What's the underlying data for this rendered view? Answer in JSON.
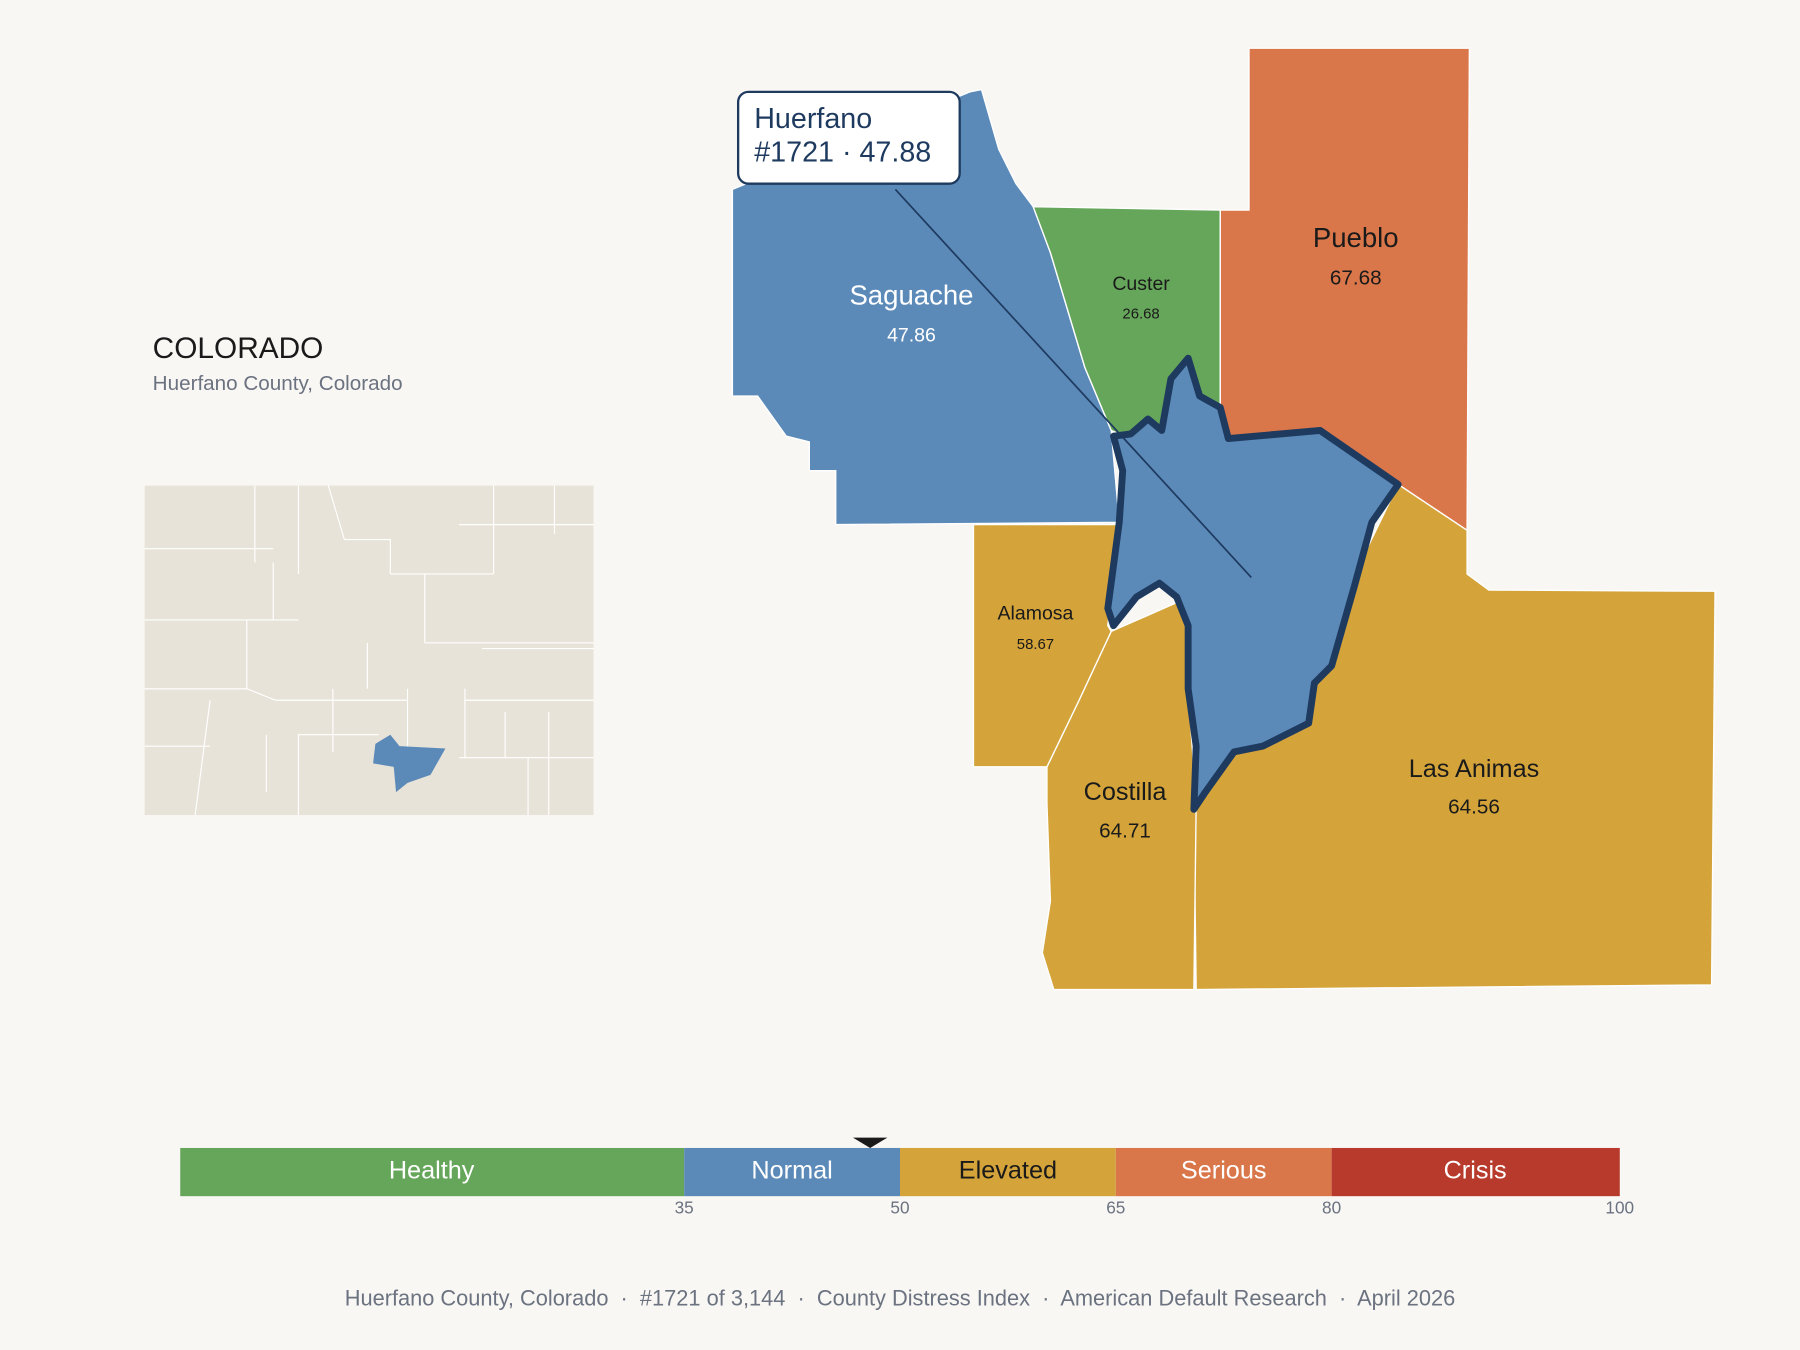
{
  "header": {
    "title": "COLORADO",
    "subtitle": "Huerfano County, Colorado"
  },
  "tooltip": {
    "name": "Huerfano",
    "detail": "#1721 · 47.88"
  },
  "counties": [
    {
      "name": "Saguache",
      "value": 47.86
    },
    {
      "name": "Custer",
      "value": 26.68
    },
    {
      "name": "Pueblo",
      "value": 67.68
    },
    {
      "name": "Alamosa",
      "value": 58.67
    },
    {
      "name": "Costilla",
      "value": 64.71
    },
    {
      "name": "Las Animas",
      "value": 64.56
    }
  ],
  "legend": {
    "bands": [
      "Healthy",
      "Normal",
      "Elevated",
      "Serious",
      "Crisis"
    ],
    "ticks": [
      35,
      50,
      65,
      80,
      100
    ]
  },
  "footer": "Huerfano County, Colorado  ·  #1721 of 3,144  ·  County Distress Index  ·  American Default Research  ·  April 2026"
}
